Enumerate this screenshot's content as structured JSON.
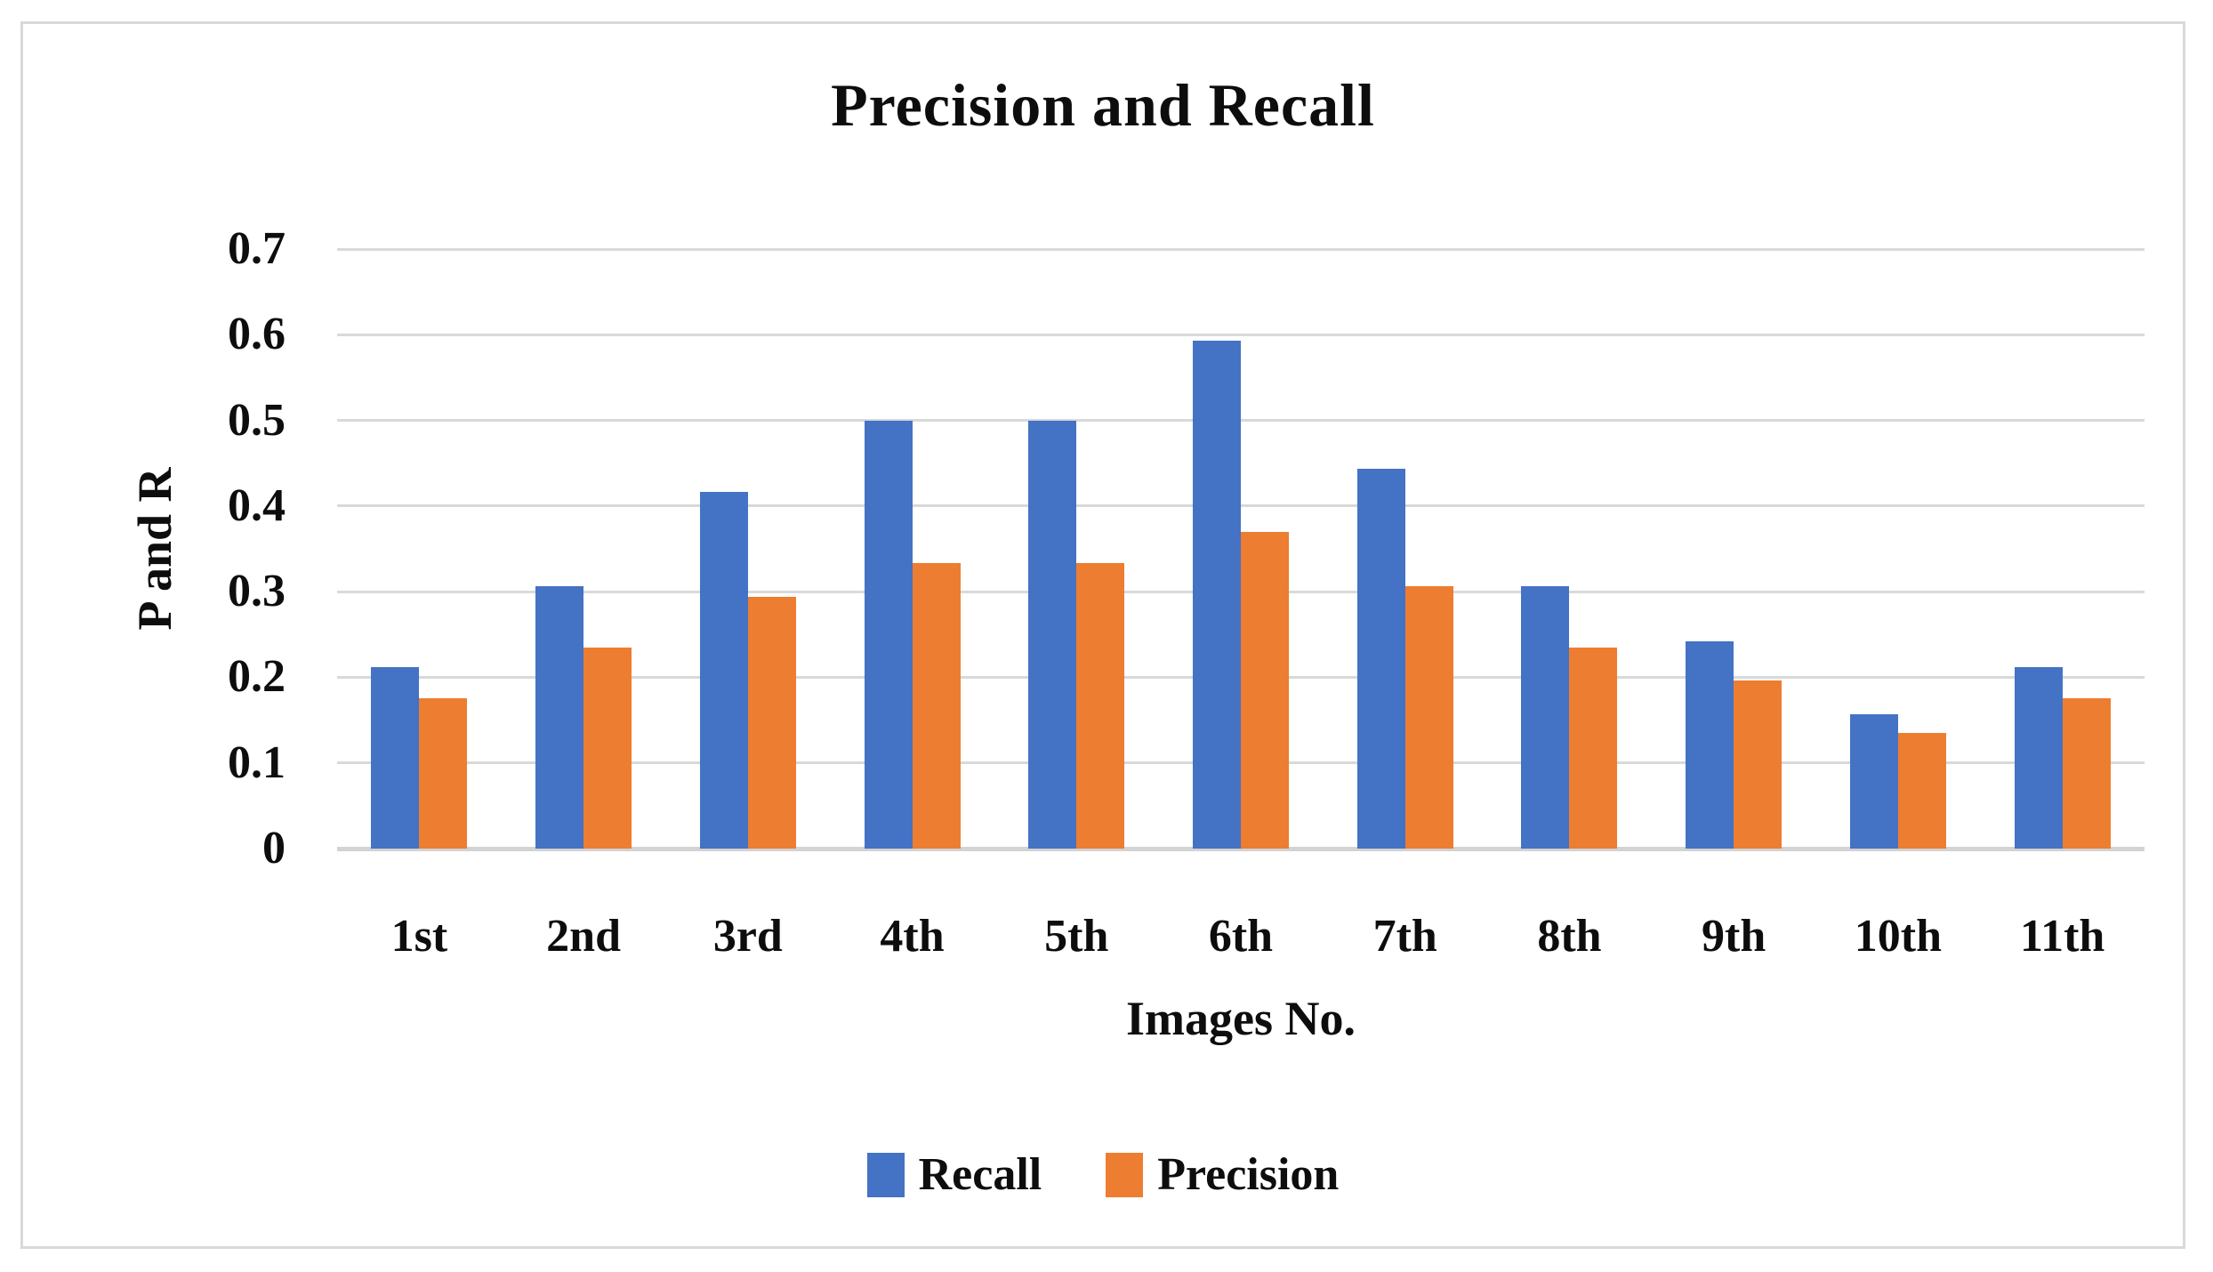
{
  "chart_data": {
    "type": "bar",
    "title": "Precision and Recall",
    "xlabel": "Images No.",
    "ylabel": "P and R",
    "categories": [
      "1st",
      "2nd",
      "3rd",
      "4th",
      "5th",
      "6th",
      "7th",
      "8th",
      "9th",
      "10th",
      "11th"
    ],
    "series": [
      {
        "name": "Recall",
        "color": "#4472C4",
        "values": [
          0.212,
          0.306,
          0.417,
          0.5,
          0.5,
          0.593,
          0.444,
          0.306,
          0.242,
          0.157,
          0.212
        ]
      },
      {
        "name": "Precision",
        "color": "#ED7D31",
        "values": [
          0.176,
          0.235,
          0.294,
          0.333,
          0.333,
          0.37,
          0.306,
          0.235,
          0.196,
          0.135,
          0.176
        ]
      }
    ],
    "ylim": [
      0,
      0.7
    ],
    "yticks": [
      "0",
      "0.1",
      "0.2",
      "0.3",
      "0.4",
      "0.5",
      "0.6",
      "0.7"
    ],
    "grid": true,
    "legend_position": "bottom",
    "colors": {
      "grid": "#D9D9D9",
      "frame": "#D9D9D9",
      "text": "#0D0D0D",
      "background": "#FFFFFF"
    }
  }
}
